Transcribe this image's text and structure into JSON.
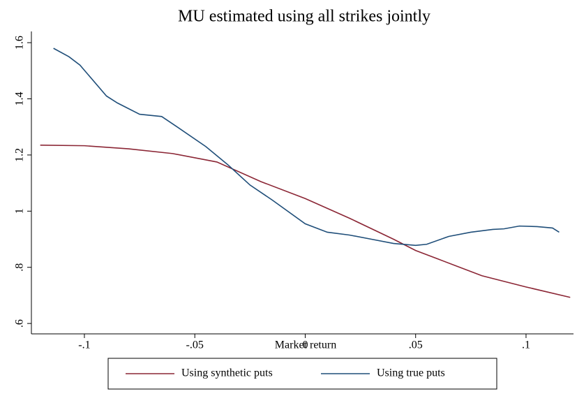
{
  "chart_data": {
    "type": "line",
    "title": "MU estimated using all strikes jointly",
    "x_label": "Market return",
    "xlim": [
      -0.124,
      0.1215
    ],
    "ylim": [
      0.563,
      1.64
    ],
    "xticks": [
      {
        "value": -0.1,
        "label": "-.1"
      },
      {
        "value": -0.05,
        "label": "-.05"
      },
      0,
      {
        "value": 0.05,
        "label": ".05"
      },
      {
        "value": 0.1,
        "label": ".1"
      }
    ],
    "yticks": [
      {
        "value": 0.6,
        "label": ".6"
      },
      {
        "value": 0.8,
        "label": ".8"
      },
      1,
      1.2,
      1.4,
      1.6
    ],
    "legend": "bottom",
    "series": [
      {
        "name": "Using synthetic puts",
        "color": "#8b2635",
        "x": [
          -0.12,
          -0.1,
          -0.08,
          -0.06,
          -0.04,
          -0.02,
          0,
          0.02,
          0.04,
          0.05,
          0.06,
          0.08,
          0.1,
          0.12
        ],
        "values": [
          1.235,
          1.233,
          1.222,
          1.205,
          1.175,
          1.105,
          1.045,
          0.975,
          0.9,
          0.86,
          0.83,
          0.77,
          0.73,
          0.693
        ]
      },
      {
        "name": "Using true puts",
        "color": "#1f4e79",
        "x": [
          -0.114,
          -0.107,
          -0.102,
          -0.09,
          -0.085,
          -0.075,
          -0.065,
          -0.058,
          -0.045,
          -0.035,
          -0.025,
          -0.015,
          0,
          0.01,
          0.02,
          0.03,
          0.04,
          0.05,
          0.055,
          0.065,
          0.075,
          0.085,
          0.09,
          0.097,
          0.105,
          0.112,
          0.115
        ],
        "values": [
          1.58,
          1.55,
          1.52,
          1.41,
          1.385,
          1.345,
          1.337,
          1.3,
          1.23,
          1.165,
          1.093,
          1.04,
          0.955,
          0.925,
          0.915,
          0.9,
          0.885,
          0.878,
          0.882,
          0.91,
          0.925,
          0.935,
          0.937,
          0.947,
          0.945,
          0.94,
          0.925
        ]
      }
    ]
  }
}
